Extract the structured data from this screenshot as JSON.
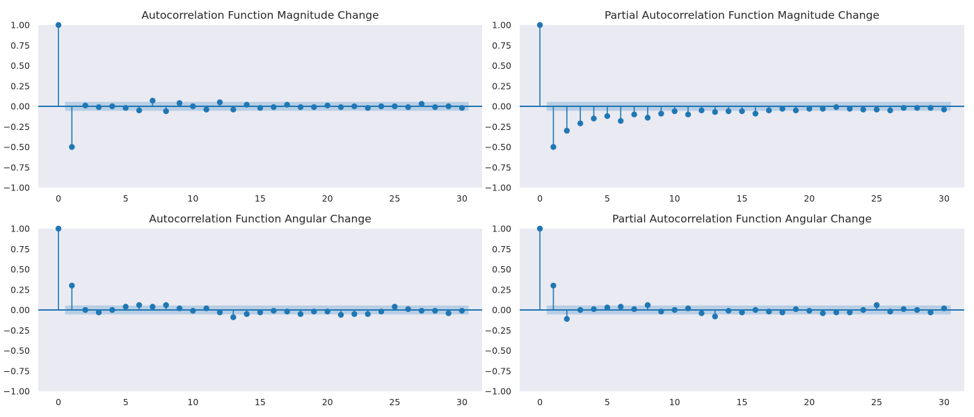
{
  "colors": {
    "plot_bg": "#eaeaf2",
    "series": "#1f77b4",
    "confidence_band": "#b3cbe3",
    "text": "#262626"
  },
  "chart_data": [
    {
      "type": "stem",
      "title": "Autocorrelation Function Magnitude Change",
      "xlabel": "",
      "ylabel": "",
      "xlim": [
        -1.5,
        31.5
      ],
      "ylim": [
        -1.0,
        1.0
      ],
      "xticks": [
        0,
        5,
        10,
        15,
        20,
        25,
        30
      ],
      "yticks": [
        -1.0,
        -0.75,
        -0.5,
        -0.25,
        0.0,
        0.25,
        0.5,
        0.75,
        1.0
      ],
      "ytick_labels": [
        "−1.00",
        "−0.75",
        "−0.50",
        "−0.25",
        "0.00",
        "0.25",
        "0.50",
        "0.75",
        "1.00"
      ],
      "grid": false,
      "confidence_band": 0.055,
      "x": [
        0,
        1,
        2,
        3,
        4,
        5,
        6,
        7,
        8,
        9,
        10,
        11,
        12,
        13,
        14,
        15,
        16,
        17,
        18,
        19,
        20,
        21,
        22,
        23,
        24,
        25,
        26,
        27,
        28,
        29,
        30
      ],
      "values": [
        1.0,
        -0.5,
        0.01,
        -0.01,
        0.0,
        -0.02,
        -0.05,
        0.07,
        -0.06,
        0.04,
        0.0,
        -0.04,
        0.05,
        -0.04,
        0.02,
        -0.02,
        -0.01,
        0.02,
        -0.01,
        -0.01,
        0.01,
        -0.01,
        0.0,
        -0.02,
        0.0,
        0.0,
        -0.01,
        0.03,
        -0.01,
        0.0,
        -0.02
      ]
    },
    {
      "type": "stem",
      "title": "Partial Autocorrelation Function Magnitude Change",
      "xlabel": "",
      "ylabel": "",
      "xlim": [
        -1.5,
        31.5
      ],
      "ylim": [
        -1.0,
        1.0
      ],
      "xticks": [
        0,
        5,
        10,
        15,
        20,
        25,
        30
      ],
      "yticks": [
        -1.0,
        -0.75,
        -0.5,
        -0.25,
        0.0,
        0.25,
        0.5,
        0.75,
        1.0
      ],
      "ytick_labels": [
        "−1.00",
        "−0.75",
        "−0.50",
        "−0.25",
        "0.00",
        "0.25",
        "0.50",
        "0.75",
        "1.00"
      ],
      "grid": false,
      "confidence_band": 0.055,
      "x": [
        0,
        1,
        2,
        3,
        4,
        5,
        6,
        7,
        8,
        9,
        10,
        11,
        12,
        13,
        14,
        15,
        16,
        17,
        18,
        19,
        20,
        21,
        22,
        23,
        24,
        25,
        26,
        27,
        28,
        29,
        30
      ],
      "values": [
        1.0,
        -0.5,
        -0.3,
        -0.21,
        -0.15,
        -0.12,
        -0.18,
        -0.1,
        -0.14,
        -0.09,
        -0.06,
        -0.1,
        -0.05,
        -0.07,
        -0.06,
        -0.06,
        -0.09,
        -0.05,
        -0.03,
        -0.05,
        -0.03,
        -0.03,
        -0.01,
        -0.03,
        -0.04,
        -0.04,
        -0.05,
        -0.02,
        -0.02,
        -0.02,
        -0.04
      ]
    },
    {
      "type": "stem",
      "title": "Autocorrelation Function Angular Change",
      "xlabel": "",
      "ylabel": "",
      "xlim": [
        -1.5,
        31.5
      ],
      "ylim": [
        -1.0,
        1.0
      ],
      "xticks": [
        0,
        5,
        10,
        15,
        20,
        25,
        30
      ],
      "yticks": [
        -1.0,
        -0.75,
        -0.5,
        -0.25,
        0.0,
        0.25,
        0.5,
        0.75,
        1.0
      ],
      "ytick_labels": [
        "−1.00",
        "−0.75",
        "−0.50",
        "−0.25",
        "0.00",
        "0.25",
        "0.50",
        "0.75",
        "1.00"
      ],
      "grid": false,
      "confidence_band": 0.055,
      "x": [
        0,
        1,
        2,
        3,
        4,
        5,
        6,
        7,
        8,
        9,
        10,
        11,
        12,
        13,
        14,
        15,
        16,
        17,
        18,
        19,
        20,
        21,
        22,
        23,
        24,
        25,
        26,
        27,
        28,
        29,
        30
      ],
      "values": [
        1.0,
        0.3,
        0.0,
        -0.03,
        0.0,
        0.04,
        0.06,
        0.04,
        0.06,
        0.02,
        -0.01,
        0.02,
        -0.03,
        -0.09,
        -0.05,
        -0.03,
        -0.01,
        -0.02,
        -0.05,
        -0.02,
        -0.02,
        -0.06,
        -0.05,
        -0.05,
        -0.02,
        0.04,
        0.01,
        -0.01,
        -0.01,
        -0.04,
        -0.01
      ]
    },
    {
      "type": "stem",
      "title": "Partial Autocorrelation Function Angular Change",
      "xlabel": "",
      "ylabel": "",
      "xlim": [
        -1.5,
        31.5
      ],
      "ylim": [
        -1.0,
        1.0
      ],
      "xticks": [
        0,
        5,
        10,
        15,
        20,
        25,
        30
      ],
      "yticks": [
        -1.0,
        -0.75,
        -0.5,
        -0.25,
        0.0,
        0.25,
        0.5,
        0.75,
        1.0
      ],
      "ytick_labels": [
        "−1.00",
        "−0.75",
        "−0.50",
        "−0.25",
        "0.00",
        "0.25",
        "0.50",
        "0.75",
        "1.00"
      ],
      "grid": false,
      "confidence_band": 0.055,
      "x": [
        0,
        1,
        2,
        3,
        4,
        5,
        6,
        7,
        8,
        9,
        10,
        11,
        12,
        13,
        14,
        15,
        16,
        17,
        18,
        19,
        20,
        21,
        22,
        23,
        24,
        25,
        26,
        27,
        28,
        29,
        30
      ],
      "values": [
        1.0,
        0.3,
        -0.11,
        0.0,
        0.01,
        0.03,
        0.04,
        0.01,
        0.06,
        -0.02,
        0.0,
        0.02,
        -0.04,
        -0.08,
        -0.01,
        -0.03,
        0.0,
        -0.02,
        -0.03,
        0.01,
        -0.01,
        -0.04,
        -0.03,
        -0.03,
        0.0,
        0.06,
        -0.02,
        0.01,
        0.0,
        -0.03,
        0.02
      ]
    }
  ]
}
